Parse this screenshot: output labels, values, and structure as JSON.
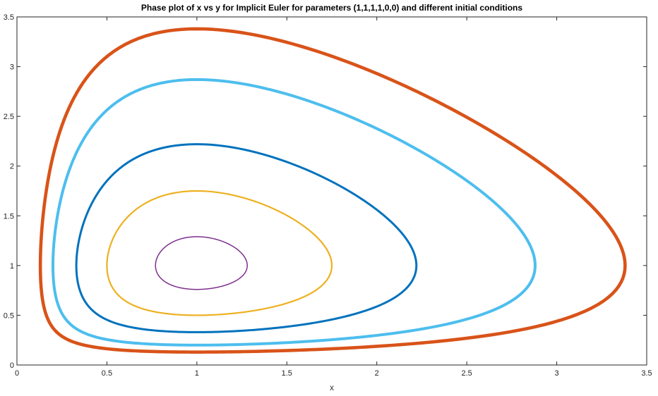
{
  "chart_data": {
    "type": "line",
    "title": "Phase plot of x vs y for Implicit Euler for parameters (1,1,1,1,0,0) and different initial conditions",
    "xlabel": "x",
    "ylabel": "",
    "xlim": [
      0,
      3.5
    ],
    "ylim": [
      0,
      3.5
    ],
    "xticks": [
      "0",
      "0.5",
      "1",
      "1.5",
      "2",
      "2.5",
      "3",
      "3.5"
    ],
    "yticks": [
      "0",
      "0.5",
      "1",
      "1.5",
      "2",
      "2.5",
      "3",
      "3.5"
    ],
    "grid": false,
    "legend": "none",
    "series": [
      {
        "color": "#7E2F8E",
        "stroke": 1.5,
        "xmin": 0.77,
        "xmax": 1.28,
        "ymin": 0.76,
        "ymax": 1.29,
        "xpeak": 1.0,
        "ypeak": 1.0
      },
      {
        "color": "#EDB120",
        "stroke": 2.2,
        "xmin": 0.5,
        "xmax": 1.75,
        "ymin": 0.5,
        "ymax": 1.75,
        "xpeak": 1.0,
        "ypeak": 1.0
      },
      {
        "color": "#0072BD",
        "stroke": 3.0,
        "xmin": 0.33,
        "xmax": 2.22,
        "ymin": 0.33,
        "ymax": 2.22,
        "xpeak": 1.0,
        "ypeak": 1.0
      },
      {
        "color": "#4DBEEE",
        "stroke": 4.0,
        "xmin": 0.2,
        "xmax": 2.88,
        "ymin": 0.2,
        "ymax": 2.87,
        "xpeak": 1.0,
        "ypeak": 1.0
      },
      {
        "color": "#D95319",
        "stroke": 4.6,
        "xmin": 0.13,
        "xmax": 3.38,
        "ymin": 0.13,
        "ymax": 3.38,
        "xpeak": 1.0,
        "ypeak": 1.0
      }
    ]
  }
}
